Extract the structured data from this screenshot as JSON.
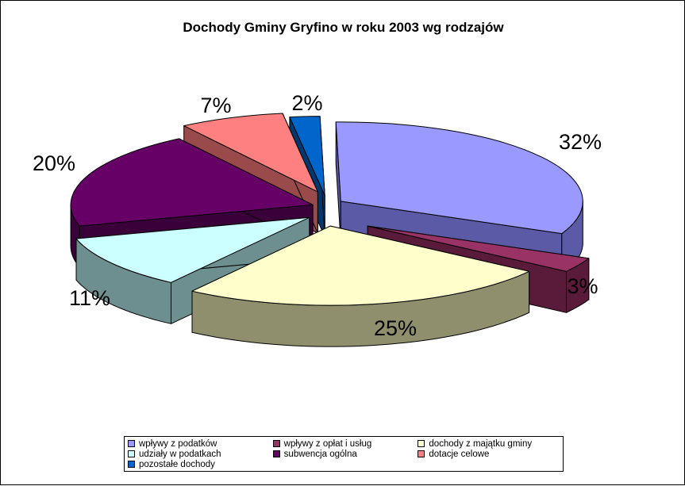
{
  "chart_data": {
    "type": "pie",
    "title": "Dochody Gminy Gryfino w roku 2003 wg rodzajów",
    "exploded": true,
    "three_d": true,
    "legend_position": "bottom",
    "slices": [
      {
        "name": "wpływy z podatków",
        "value": 32,
        "label": "32%",
        "color": "#9999ff",
        "side": "#5a5aa6"
      },
      {
        "name": "wpływy z opłat i usług",
        "value": 3,
        "label": "3%",
        "color": "#993366",
        "side": "#5a1a3a"
      },
      {
        "name": "dochody z majątku gminy",
        "value": 25,
        "label": "25%",
        "color": "#ffffcc",
        "side": "#8f8f6e"
      },
      {
        "name": "udziały w podatkach",
        "value": 11,
        "label": "11%",
        "color": "#ccffff",
        "side": "#6e8f8f"
      },
      {
        "name": "subwencja ogólna",
        "value": 20,
        "label": "20%",
        "color": "#660066",
        "side": "#3a003a"
      },
      {
        "name": "dotacje celowe",
        "value": 7,
        "label": "7%",
        "color": "#ff8080",
        "side": "#9a4a4a"
      },
      {
        "name": "pozostałe dochody",
        "value": 2,
        "label": "2%",
        "color": "#0066cc",
        "side": "#00376e"
      }
    ]
  }
}
